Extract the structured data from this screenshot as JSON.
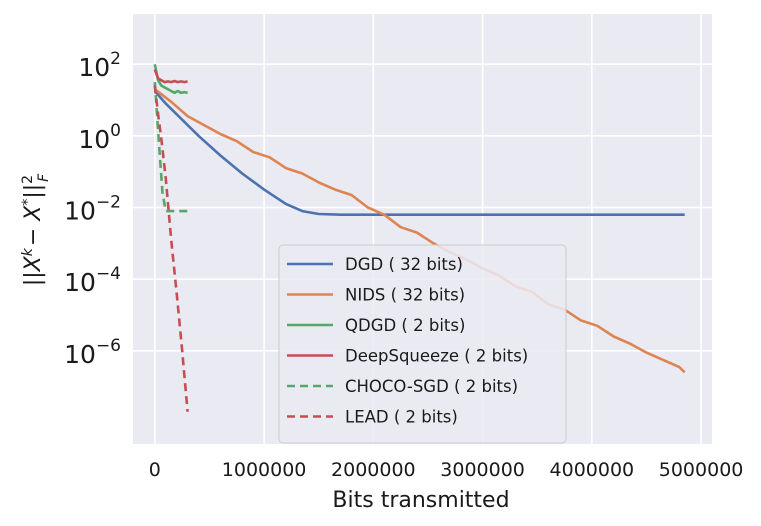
{
  "chart_data": {
    "type": "line",
    "title": "",
    "xlabel": "Bits transmitted",
    "ylabel": "||X^k − X*||_F^2",
    "yscale": "log",
    "xlim": [
      -200000,
      5100000
    ],
    "ylim_log10": [
      -8.6,
      3.4
    ],
    "x_ticks": [
      {
        "value": 0,
        "label": "0"
      },
      {
        "value": 1000000,
        "label": "1000000"
      },
      {
        "value": 2000000,
        "label": "2000000"
      },
      {
        "value": 3000000,
        "label": "3000000"
      },
      {
        "value": 4000000,
        "label": "4000000"
      },
      {
        "value": 5000000,
        "label": "5000000"
      }
    ],
    "y_ticks": [
      {
        "exp": 2,
        "base": "10",
        "power": "2"
      },
      {
        "exp": 0,
        "base": "10",
        "power": "0"
      },
      {
        "exp": -2,
        "base": "10",
        "power": "−2"
      },
      {
        "exp": -4,
        "base": "10",
        "power": "−4"
      },
      {
        "exp": -6,
        "base": "10",
        "power": "−6"
      }
    ],
    "grid": true,
    "legend_position": "lower-center",
    "series": [
      {
        "name": "DGD ( 32 bits)",
        "color": "#4c72b0",
        "dash": "solid",
        "x": [
          0,
          100000,
          200000,
          400000,
          600000,
          800000,
          1000000,
          1200000,
          1350000,
          1500000,
          1700000,
          2500000,
          3500000,
          4500000,
          4850000
        ],
        "log10y": [
          1.25,
          0.9,
          0.6,
          0.0,
          -0.55,
          -1.05,
          -1.5,
          -1.9,
          -2.1,
          -2.18,
          -2.2,
          -2.2,
          -2.2,
          -2.2,
          -2.2
        ]
      },
      {
        "name": "NIDS ( 32 bits)",
        "color": "#dd8452",
        "dash": "solid",
        "x": [
          0,
          150000,
          300000,
          450000,
          600000,
          750000,
          900000,
          1050000,
          1200000,
          1350000,
          1500000,
          1650000,
          1800000,
          1950000,
          2100000,
          2250000,
          2400000,
          2550000,
          2700000,
          2850000,
          3000000,
          3150000,
          3300000,
          3450000,
          3600000,
          3750000,
          3900000,
          4050000,
          4200000,
          4350000,
          4500000,
          4650000,
          4800000,
          4850000
        ],
        "log10y": [
          1.3,
          0.95,
          0.55,
          0.3,
          0.05,
          -0.15,
          -0.45,
          -0.6,
          -0.9,
          -1.05,
          -1.3,
          -1.5,
          -1.65,
          -2.0,
          -2.2,
          -2.55,
          -2.7,
          -3.0,
          -3.25,
          -3.45,
          -3.7,
          -3.9,
          -4.2,
          -4.35,
          -4.7,
          -4.85,
          -5.15,
          -5.3,
          -5.6,
          -5.8,
          -6.05,
          -6.25,
          -6.45,
          -6.6
        ]
      },
      {
        "name": "QDGD ( 2 bits)",
        "color": "#55a868",
        "dash": "solid",
        "x": [
          0,
          30000,
          60000,
          90000,
          120000,
          150000,
          180000,
          210000,
          240000,
          270000,
          300000
        ],
        "log10y": [
          2.0,
          1.55,
          1.4,
          1.35,
          1.3,
          1.25,
          1.2,
          1.25,
          1.2,
          1.22,
          1.2
        ]
      },
      {
        "name": "DeepSqueeze ( 2 bits)",
        "color": "#c44e52",
        "dash": "solid",
        "x": [
          0,
          30000,
          60000,
          90000,
          120000,
          150000,
          180000,
          210000,
          240000,
          270000,
          300000
        ],
        "log10y": [
          1.85,
          1.6,
          1.55,
          1.5,
          1.52,
          1.5,
          1.53,
          1.5,
          1.52,
          1.5,
          1.52
        ]
      },
      {
        "name": "CHOCO-SGD ( 2 bits)",
        "color": "#55a868",
        "dash": "dashed",
        "x": [
          0,
          40000,
          70000,
          100000,
          200000,
          300000
        ],
        "log10y": [
          1.5,
          -0.3,
          -1.6,
          -2.1,
          -2.1,
          -2.1
        ]
      },
      {
        "name": "LEAD ( 2 bits)",
        "color": "#c44e52",
        "dash": "dashed",
        "x": [
          0,
          30000,
          60000,
          100000,
          150000,
          200000,
          250000,
          300000
        ],
        "log10y": [
          1.4,
          0.6,
          -0.1,
          -1.2,
          -2.9,
          -4.4,
          -6.0,
          -7.7
        ]
      }
    ]
  }
}
